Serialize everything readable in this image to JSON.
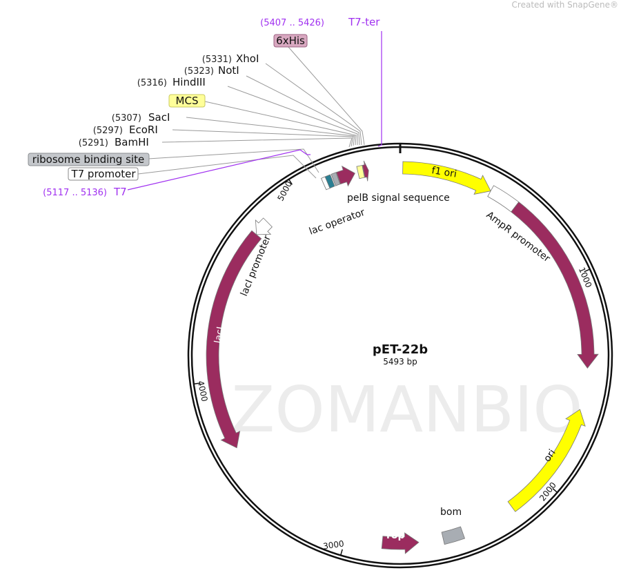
{
  "credit": "Created with SnapGene®",
  "plasmid": {
    "name": "pET-22b",
    "length_label": "5493 bp",
    "length": 5493
  },
  "watermark": "ZOMANBIO",
  "colors": {
    "purple_feature": "#9b2c5f",
    "yellow_feature": "#ffff00",
    "grey_feature": "#a8adb3",
    "teal_feature": "#2a7f93",
    "primer": "#a030f0",
    "light_yellow": "#ffff99",
    "his_tag": "#d8a8c0"
  },
  "sites": [
    {
      "pos": "(5331)",
      "name": "XhoI"
    },
    {
      "pos": "(5323)",
      "name": "NotI"
    },
    {
      "pos": "(5316)",
      "name": "HindIII"
    },
    {
      "pos": "(5307)",
      "name": "SacI"
    },
    {
      "pos": "(5297)",
      "name": "EcoRI"
    },
    {
      "pos": "(5291)",
      "name": "BamHI"
    }
  ],
  "boxed_labels": {
    "his": "6xHis",
    "mcs": "MCS",
    "rbs": "ribosome binding site",
    "t7_promoter": "T7 promoter"
  },
  "primers": {
    "t7_ter": {
      "range": "(5407 .. 5426)",
      "name": "T7-ter"
    },
    "t7": {
      "range": "(5117 .. 5136)",
      "name": "T7"
    }
  },
  "features": [
    {
      "name": "f1 ori",
      "start": 12,
      "end": 440,
      "direction": "forward",
      "color": "#ffff00"
    },
    {
      "name": "AmpR promoter",
      "start": 440,
      "end": 575,
      "direction": "none",
      "color": "#ffffff"
    },
    {
      "name": "AmpR",
      "start": 575,
      "end": 1432,
      "direction": "forward",
      "color": "#9b2c5f"
    },
    {
      "name": "ori",
      "start": 1628,
      "end": 2191,
      "direction": "reverse",
      "color": "#ffff00"
    },
    {
      "name": "bom",
      "start": 2450,
      "end": 2545,
      "direction": "none",
      "color": "#a8adb3"
    },
    {
      "name": "rop",
      "start": 2660,
      "end": 2830,
      "direction": "reverse",
      "color": "#9b2c5f"
    },
    {
      "name": "lacI",
      "start": 3670,
      "end": 4731,
      "direction": "reverse",
      "color": "#9b2c5f"
    },
    {
      "name": "lacI promoter",
      "start": 4731,
      "end": 4808,
      "direction": "reverse",
      "color": "#ffffff"
    },
    {
      "name": "T7 promoter",
      "start": 5126,
      "end": 5145,
      "direction": "none",
      "color": "#ffffff"
    },
    {
      "name": "lac operator",
      "start": 5145,
      "end": 5170,
      "direction": "none",
      "color": "#2a7f93"
    },
    {
      "name": "ribosome binding site",
      "start": 5175,
      "end": 5198,
      "direction": "none",
      "color": "#a8adb3"
    },
    {
      "name": "start arrow",
      "start": 5200,
      "end": 5280,
      "direction": "forward",
      "color": "#9b2c5f"
    },
    {
      "name": "pelB signal sequence",
      "start": 5295,
      "end": 5320,
      "direction": "none",
      "color": "#ffff99"
    },
    {
      "name": "6xHis",
      "start": 5322,
      "end": 5345,
      "direction": "forward",
      "color": "#9b2c5f"
    }
  ],
  "feature_labels": {
    "pelb": "pelB signal sequence",
    "lac_operator": "lac operator",
    "f1ori": "f1 ori",
    "ampr_promoter": "AmpR promoter",
    "ampr": "AmpR",
    "laci": "lacI",
    "laci_promoter": "lacI promoter",
    "ori": "ori",
    "rop": "rop",
    "bom": "bom"
  },
  "ticks": [
    {
      "bp": 1000,
      "label": "1000"
    },
    {
      "bp": 2000,
      "label": "2000"
    },
    {
      "bp": 3000,
      "label": "3000"
    },
    {
      "bp": 4000,
      "label": "4000"
    },
    {
      "bp": 5000,
      "label": "5000"
    }
  ]
}
